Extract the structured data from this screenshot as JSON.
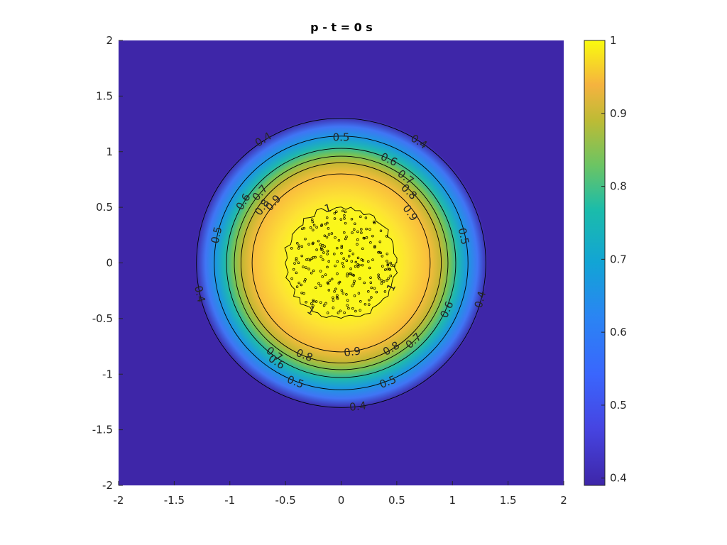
{
  "chart_data": {
    "type": "heatmap",
    "title": "p - t = 0 s",
    "xlabel": "",
    "ylabel": "",
    "xlim": [
      -2,
      2
    ],
    "ylim": [
      -2,
      2
    ],
    "x_ticks": [
      -2,
      -1.5,
      -1,
      -0.5,
      0,
      0.5,
      1,
      1.5,
      2
    ],
    "x_tick_labels": [
      "-2",
      "-1.5",
      "-1",
      "-0.5",
      "0",
      "0.5",
      "1",
      "1.5",
      "2"
    ],
    "y_ticks": [
      -2,
      -1.5,
      -1,
      -0.5,
      0,
      0.5,
      1,
      1.5,
      2
    ],
    "y_tick_labels": [
      "-2",
      "-1.5",
      "-1",
      "-0.5",
      "0",
      "0.5",
      "1",
      "1.5",
      "2"
    ],
    "colormap": "parula",
    "color_limits": [
      0.39,
      1
    ],
    "colorbar_ticks": [
      0.4,
      0.5,
      0.6,
      0.7,
      0.8,
      0.9,
      1
    ],
    "colorbar_tick_labels": [
      "0.4",
      "0.5",
      "0.6",
      "0.7",
      "0.8",
      "0.9",
      "1"
    ],
    "field": {
      "shape": "radially symmetric",
      "center": [
        0,
        0
      ],
      "background_value": 0.39,
      "peak_value": 1
    },
    "contours": [
      {
        "level": 0.4,
        "label": "0.4",
        "radius": 1.3
      },
      {
        "level": 0.5,
        "label": "0.5",
        "radius": 1.14
      },
      {
        "level": 0.6,
        "label": "0.6",
        "radius": 1.03
      },
      {
        "level": 0.7,
        "label": "0.7",
        "radius": 0.96
      },
      {
        "level": 0.8,
        "label": "0.8",
        "radius": 0.9
      },
      {
        "level": 0.9,
        "label": "0.9",
        "radius": 0.8
      },
      {
        "level": 1,
        "label": "1",
        "radius": 0.5
      }
    ],
    "contour_labels": [
      {
        "text": "0.4",
        "x": -0.7,
        "y": 1.11
      },
      {
        "text": "0.5",
        "x": 0.0,
        "y": 1.13
      },
      {
        "text": "0.4",
        "x": 0.7,
        "y": 1.09
      },
      {
        "text": "0.6",
        "x": 0.43,
        "y": 0.93
      },
      {
        "text": "0.7",
        "x": 0.58,
        "y": 0.77
      },
      {
        "text": "0.8",
        "x": 0.61,
        "y": 0.64
      },
      {
        "text": "0.9",
        "x": 0.62,
        "y": 0.45
      },
      {
        "text": "0.6",
        "x": -0.88,
        "y": 0.55
      },
      {
        "text": "0.7",
        "x": -0.73,
        "y": 0.63
      },
      {
        "text": "0.8",
        "x": -0.71,
        "y": 0.5
      },
      {
        "text": "0.9",
        "x": -0.61,
        "y": 0.54
      },
      {
        "text": "0.5",
        "x": -1.12,
        "y": 0.25
      },
      {
        "text": "0.5",
        "x": 1.1,
        "y": 0.24
      },
      {
        "text": "0.4",
        "x": -1.27,
        "y": -0.28
      },
      {
        "text": "0.4",
        "x": 1.25,
        "y": -0.33
      },
      {
        "text": "0.6",
        "x": 0.95,
        "y": -0.42
      },
      {
        "text": "0.7",
        "x": 0.65,
        "y": -0.7
      },
      {
        "text": "0.8",
        "x": 0.45,
        "y": -0.77
      },
      {
        "text": "0.9",
        "x": 0.1,
        "y": -0.8
      },
      {
        "text": "0.8",
        "x": -0.33,
        "y": -0.83
      },
      {
        "text": "0.7",
        "x": -0.6,
        "y": -0.82
      },
      {
        "text": "0.6",
        "x": -0.58,
        "y": -0.89
      },
      {
        "text": "0.5",
        "x": -0.41,
        "y": -1.07
      },
      {
        "text": "0.5",
        "x": 0.42,
        "y": -1.07
      },
      {
        "text": "0.4",
        "x": 0.15,
        "y": -1.29
      },
      {
        "text": "1",
        "x": -0.12,
        "y": 0.49
      },
      {
        "text": "1",
        "x": -0.27,
        "y": -0.43
      },
      {
        "text": "1",
        "x": 0.45,
        "y": -0.22
      }
    ]
  }
}
